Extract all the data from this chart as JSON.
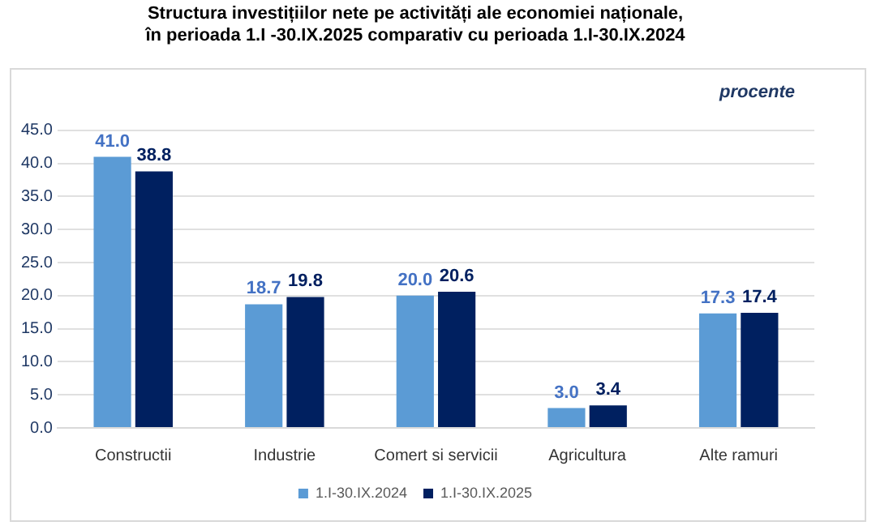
{
  "chart_data": {
    "type": "bar",
    "title": "Structura investițiilor nete pe activități ale economiei naționale,\nîn perioada 1.I -30.IX.2025 comparativ cu perioada 1.I-30.IX.2024",
    "categories": [
      "Constructii",
      "Industrie",
      "Comert si servicii",
      "Agricultura",
      "Alte ramuri"
    ],
    "series": [
      {
        "name": "1.I-30.IX.2024",
        "color": "#5b9bd5",
        "values": [
          41.0,
          18.7,
          20.0,
          3.0,
          17.3
        ],
        "value_labels": [
          "41.0",
          "18.7",
          "20.0",
          "3.0",
          "17.3"
        ]
      },
      {
        "name": "1.I-30.IX.2025",
        "color": "#002060",
        "values": [
          38.8,
          19.8,
          20.6,
          3.4,
          17.4
        ],
        "value_labels": [
          "38.8",
          "19.8",
          "20.6",
          "3.4",
          "17.4"
        ]
      }
    ],
    "ylim": [
      0,
      45
    ],
    "yticks": [
      {
        "value": 0,
        "label": "0.0"
      },
      {
        "value": 5,
        "label": "5.0"
      },
      {
        "value": 10,
        "label": "10.0"
      },
      {
        "value": 15,
        "label": "15.0"
      },
      {
        "value": 20,
        "label": "20.0"
      },
      {
        "value": 25,
        "label": "25.0"
      },
      {
        "value": 30,
        "label": "30.0"
      },
      {
        "value": 35,
        "label": "35.0"
      },
      {
        "value": 40,
        "label": "40.0"
      },
      {
        "value": 45,
        "label": "45.0"
      }
    ],
    "grid": "y",
    "legend": "bottom",
    "annotations": [
      "procente"
    ]
  }
}
